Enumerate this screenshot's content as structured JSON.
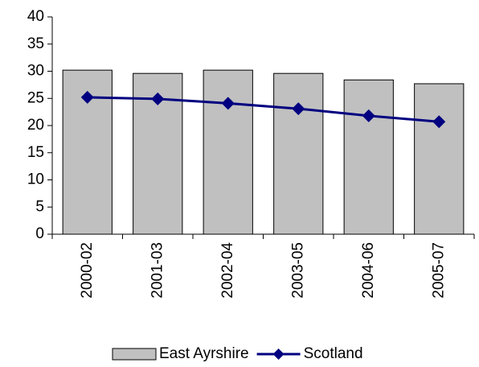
{
  "chart_data": {
    "type": "bar",
    "categories": [
      "2000-02",
      "2001-03",
      "2002-04",
      "2003-05",
      "2004-06",
      "2005-07"
    ],
    "series": [
      {
        "name": "East Ayrshire",
        "type": "bar",
        "color": "#c0c0c0",
        "values": [
          30.2,
          29.6,
          30.2,
          29.6,
          28.4,
          27.7
        ]
      },
      {
        "name": "Scotland",
        "type": "line",
        "color": "#000080",
        "values": [
          25.2,
          24.9,
          24.1,
          23.1,
          21.8,
          20.7
        ]
      }
    ],
    "ylim": [
      0,
      40
    ],
    "yticks": [
      0,
      5,
      10,
      15,
      20,
      25,
      30,
      35,
      40
    ],
    "grid": false,
    "legend": "bottom"
  }
}
